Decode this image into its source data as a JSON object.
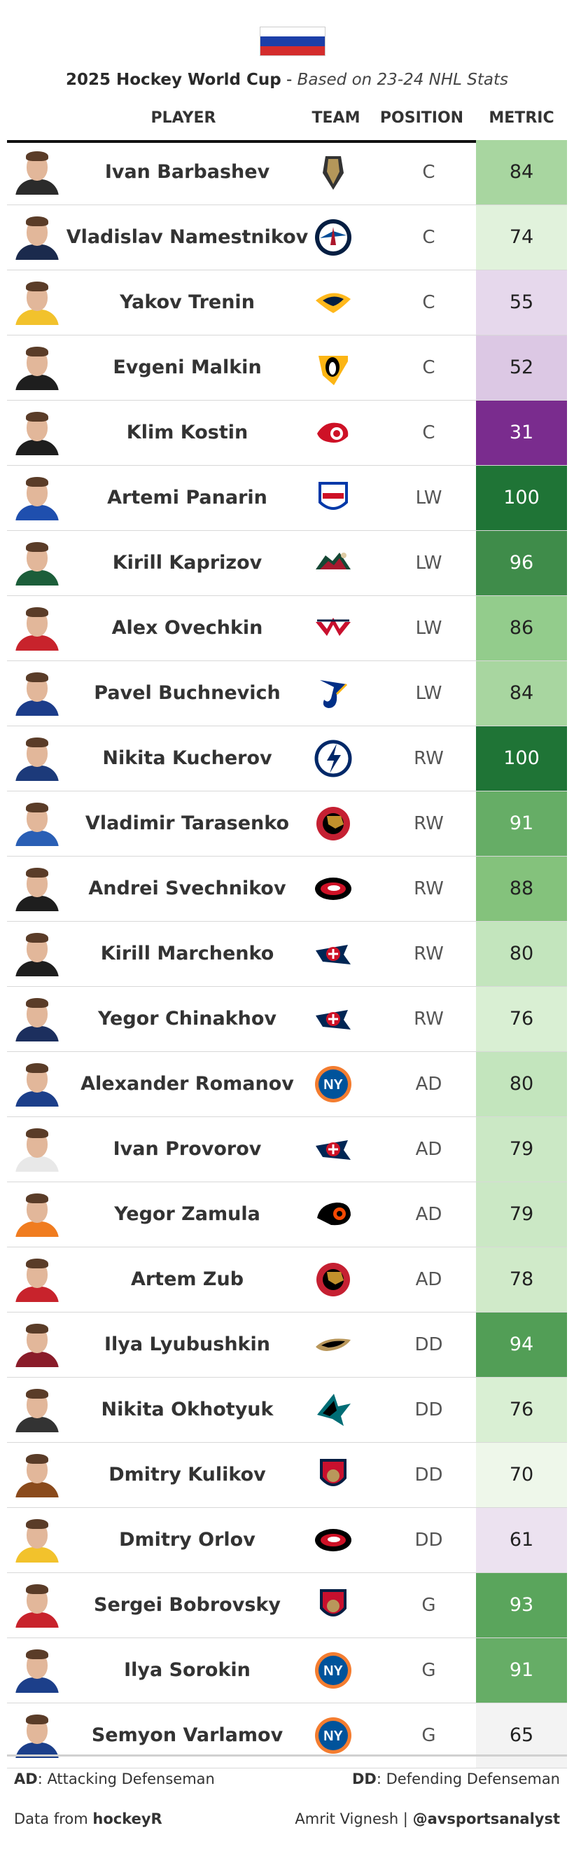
{
  "flag": {
    "colors": [
      "#ffffff",
      "#1c3fa8",
      "#d42c2c"
    ]
  },
  "title": {
    "main": "2025 Hockey World Cup",
    "separator": " - ",
    "sub": "Based on 23-24 NHL Stats"
  },
  "columns": {
    "player": "PLAYER",
    "team": "TEAM",
    "position": "POSITION",
    "metric": "METRIC"
  },
  "players": [
    {
      "name": "Ivan Barbashev",
      "team": "vegas-golden-knights-logo",
      "position": "C",
      "metric": "84",
      "metric_bg": "#a8d6a0",
      "metric_fg": "#222",
      "jersey": "#2b2b2b"
    },
    {
      "name": "Vladislav Namestnikov",
      "team": "winnipeg-jets-logo",
      "position": "C",
      "metric": "74",
      "metric_bg": "#e1f2dc",
      "metric_fg": "#222",
      "jersey": "#1b2a4d"
    },
    {
      "name": "Yakov Trenin",
      "team": "nashville-predators-logo",
      "position": "C",
      "metric": "55",
      "metric_bg": "#e6d8ec",
      "metric_fg": "#222",
      "jersey": "#f2c22c"
    },
    {
      "name": "Evgeni Malkin",
      "team": "pittsburgh-penguins-logo",
      "position": "C",
      "metric": "52",
      "metric_bg": "#dcc8e4",
      "metric_fg": "#222",
      "jersey": "#1e1e1e"
    },
    {
      "name": "Klim Kostin",
      "team": "detroit-red-wings-logo",
      "position": "C",
      "metric": "31",
      "metric_bg": "#7a2c8e",
      "metric_fg": "#ffffff",
      "jersey": "#1e1e1e"
    },
    {
      "name": "Artemi Panarin",
      "team": "new-york-rangers-logo",
      "position": "LW",
      "metric": "100",
      "metric_bg": "#1f7436",
      "metric_fg": "#ffffff",
      "jersey": "#1f4fae"
    },
    {
      "name": "Kirill Kaprizov",
      "team": "minnesota-wild-logo",
      "position": "LW",
      "metric": "96",
      "metric_bg": "#3f8c4a",
      "metric_fg": "#ffffff",
      "jersey": "#1c5e3a"
    },
    {
      "name": "Alex Ovechkin",
      "team": "washington-capitals-logo",
      "position": "LW",
      "metric": "86",
      "metric_bg": "#93cc8c",
      "metric_fg": "#222",
      "jersey": "#c8232c"
    },
    {
      "name": "Pavel Buchnevich",
      "team": "st-louis-blues-logo",
      "position": "LW",
      "metric": "84",
      "metric_bg": "#a8d6a0",
      "metric_fg": "#222",
      "jersey": "#1c3d8a"
    },
    {
      "name": "Nikita Kucherov",
      "team": "tampa-bay-lightning-logo",
      "position": "RW",
      "metric": "100",
      "metric_bg": "#1f7436",
      "metric_fg": "#ffffff",
      "jersey": "#1c3a7a"
    },
    {
      "name": "Vladimir Tarasenko",
      "team": "ottawa-senators-logo",
      "position": "RW",
      "metric": "91",
      "metric_bg": "#66ad66",
      "metric_fg": "#ffffff",
      "jersey": "#2a5fb5"
    },
    {
      "name": "Andrei Svechnikov",
      "team": "carolina-hurricanes-logo",
      "position": "RW",
      "metric": "88",
      "metric_bg": "#84c27c",
      "metric_fg": "#222",
      "jersey": "#1e1e1e"
    },
    {
      "name": "Kirill Marchenko",
      "team": "columbus-blue-jackets-logo",
      "position": "RW",
      "metric": "80",
      "metric_bg": "#c3e5bd",
      "metric_fg": "#222",
      "jersey": "#1e1e1e"
    },
    {
      "name": "Yegor Chinakhov",
      "team": "columbus-blue-jackets-logo",
      "position": "RW",
      "metric": "76",
      "metric_bg": "#d9efd3",
      "metric_fg": "#222",
      "jersey": "#1c2f5e"
    },
    {
      "name": "Alexander Romanov",
      "team": "new-york-islanders-logo",
      "position": "AD",
      "metric": "80",
      "metric_bg": "#c3e5bd",
      "metric_fg": "#222",
      "jersey": "#1c3f8a"
    },
    {
      "name": "Ivan Provorov",
      "team": "columbus-blue-jackets-logo",
      "position": "AD",
      "metric": "79",
      "metric_bg": "#cbe8c5",
      "metric_fg": "#222",
      "jersey": "#e8e8e8"
    },
    {
      "name": "Yegor Zamula",
      "team": "philadelphia-flyers-logo",
      "position": "AD",
      "metric": "79",
      "metric_bg": "#cbe8c5",
      "metric_fg": "#222",
      "jersey": "#f07c20"
    },
    {
      "name": "Artem Zub",
      "team": "ottawa-senators-logo",
      "position": "AD",
      "metric": "78",
      "metric_bg": "#d0eac9",
      "metric_fg": "#222",
      "jersey": "#c8232c"
    },
    {
      "name": "Ilya Lyubushkin",
      "team": "anaheim-ducks-logo",
      "position": "DD",
      "metric": "94",
      "metric_bg": "#529e56",
      "metric_fg": "#ffffff",
      "jersey": "#8a1c2a"
    },
    {
      "name": "Nikita Okhotyuk",
      "team": "san-jose-sharks-logo",
      "position": "DD",
      "metric": "76",
      "metric_bg": "#d9efd3",
      "metric_fg": "#222",
      "jersey": "#333333"
    },
    {
      "name": "Dmitry Kulikov",
      "team": "florida-panthers-logo",
      "position": "DD",
      "metric": "70",
      "metric_bg": "#eef7ea",
      "metric_fg": "#222",
      "jersey": "#8a4a1c"
    },
    {
      "name": "Dmitry Orlov",
      "team": "carolina-hurricanes-logo",
      "position": "DD",
      "metric": "61",
      "metric_bg": "#ece2f0",
      "metric_fg": "#222",
      "jersey": "#f2c22c"
    },
    {
      "name": "Sergei Bobrovsky",
      "team": "florida-panthers-logo",
      "position": "G",
      "metric": "93",
      "metric_bg": "#5aa55c",
      "metric_fg": "#ffffff",
      "jersey": "#c8232c"
    },
    {
      "name": "Ilya Sorokin",
      "team": "new-york-islanders-logo",
      "position": "G",
      "metric": "91",
      "metric_bg": "#66ad66",
      "metric_fg": "#ffffff",
      "jersey": "#1c3f8a"
    },
    {
      "name": "Semyon Varlamov",
      "team": "new-york-islanders-logo",
      "position": "G",
      "metric": "65",
      "metric_bg": "#f3f3f3",
      "metric_fg": "#222",
      "jersey": "#1c3f8a"
    }
  ],
  "legend": {
    "ad_abbr": "AD",
    "ad_text": ": Attacking Defenseman",
    "dd_abbr": "DD",
    "dd_text": ": Defending Defenseman"
  },
  "footer": {
    "source_prefix": "Data from ",
    "source_name": "hockeyR",
    "author": "Amrit Vignesh | ",
    "handle": "@avsportsanalyst"
  }
}
